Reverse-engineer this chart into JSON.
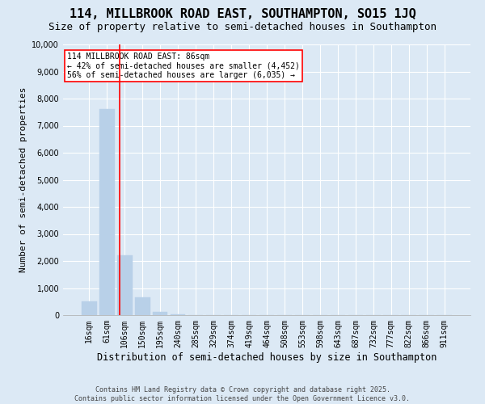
{
  "title": "114, MILLBROOK ROAD EAST, SOUTHAMPTON, SO15 1JQ",
  "subtitle": "Size of property relative to semi-detached houses in Southampton",
  "xlabel": "Distribution of semi-detached houses by size in Southampton",
  "ylabel": "Number of semi-detached properties",
  "footer": "Contains HM Land Registry data © Crown copyright and database right 2025.\nContains public sector information licensed under the Open Government Licence v3.0.",
  "bar_categories": [
    "16sqm",
    "61sqm",
    "106sqm",
    "150sqm",
    "195sqm",
    "240sqm",
    "285sqm",
    "329sqm",
    "374sqm",
    "419sqm",
    "464sqm",
    "508sqm",
    "553sqm",
    "598sqm",
    "643sqm",
    "687sqm",
    "732sqm",
    "777sqm",
    "822sqm",
    "866sqm",
    "911sqm"
  ],
  "bar_values": [
    500,
    7600,
    2200,
    650,
    120,
    20,
    0,
    0,
    0,
    0,
    0,
    0,
    0,
    0,
    0,
    0,
    0,
    0,
    0,
    0,
    0
  ],
  "bar_color": "#b8d0e8",
  "bar_edgecolor": "#b8d0e8",
  "background_color": "#dce9f5",
  "grid_color": "#ffffff",
  "property_line_x": 1.72,
  "annotation_text": "114 MILLBROOK ROAD EAST: 86sqm\n← 42% of semi-detached houses are smaller (4,452)\n56% of semi-detached houses are larger (6,035) →",
  "ylim": [
    0,
    10000
  ],
  "yticks": [
    0,
    1000,
    2000,
    3000,
    4000,
    5000,
    6000,
    7000,
    8000,
    9000,
    10000
  ],
  "title_fontsize": 11,
  "subtitle_fontsize": 9,
  "xlabel_fontsize": 8.5,
  "ylabel_fontsize": 8,
  "tick_fontsize": 7,
  "annotation_fontsize": 7,
  "footer_fontsize": 6
}
